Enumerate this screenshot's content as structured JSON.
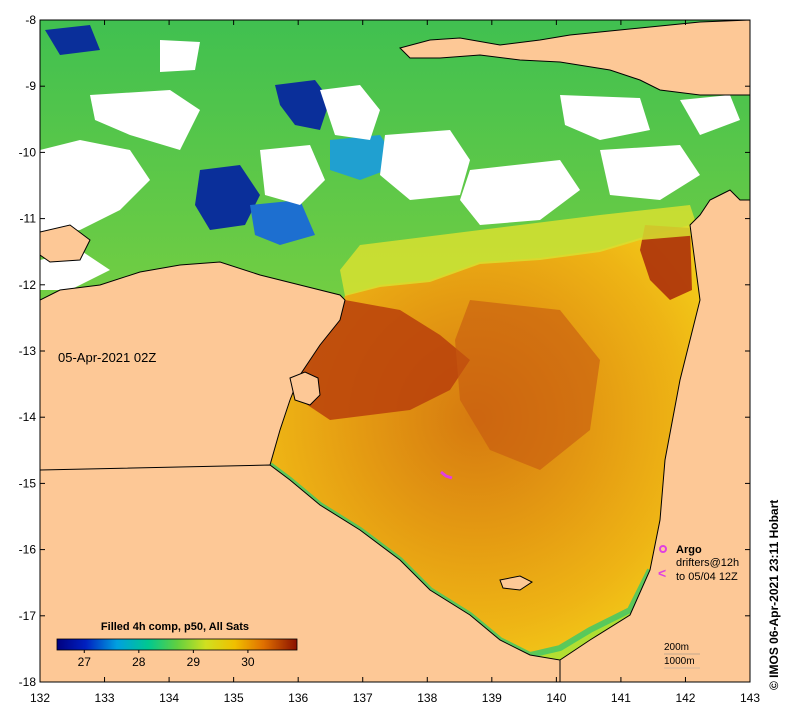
{
  "map": {
    "date_label": "05-Apr-2021 02Z",
    "credit": "© IMOS 06-Apr-2021 23:11 Hobart",
    "x_axis": {
      "min": 132,
      "max": 143,
      "ticks": [
        "132",
        "133",
        "134",
        "135",
        "136",
        "137",
        "138",
        "139",
        "140",
        "141",
        "142",
        "143"
      ]
    },
    "y_axis": {
      "min": -18,
      "max": -8,
      "ticks": [
        "-8",
        "-9",
        "-10",
        "-11",
        "-12",
        "-13",
        "-14",
        "-15",
        "-16",
        "-17",
        "-18"
      ]
    },
    "colorbar": {
      "title": "Filled 4h comp, p50, All Sats",
      "min": 26.5,
      "max": 30.9,
      "ticks": [
        "27",
        "28",
        "29",
        "30"
      ],
      "tick_values": [
        27,
        28,
        29,
        30
      ]
    },
    "legend": {
      "argo_label": "Argo",
      "drifters_label": "drifters@12h",
      "drifters_to": "to 05/04 12Z",
      "argo_color": "#e040e0",
      "drifter_color": "#e040e0",
      "argo_symbol": "argo-float-icon",
      "drifter_symbol": "drifter-arrow-icon"
    },
    "contours": {
      "label_200": "200m",
      "label_1000": "1000m"
    },
    "colors": {
      "land": "#fdc896",
      "cloud": "#ffffff",
      "warm": "#b23a0a",
      "mid": "#e8a010",
      "cool": "#30c060",
      "cold": "#0a3aa0"
    }
  }
}
